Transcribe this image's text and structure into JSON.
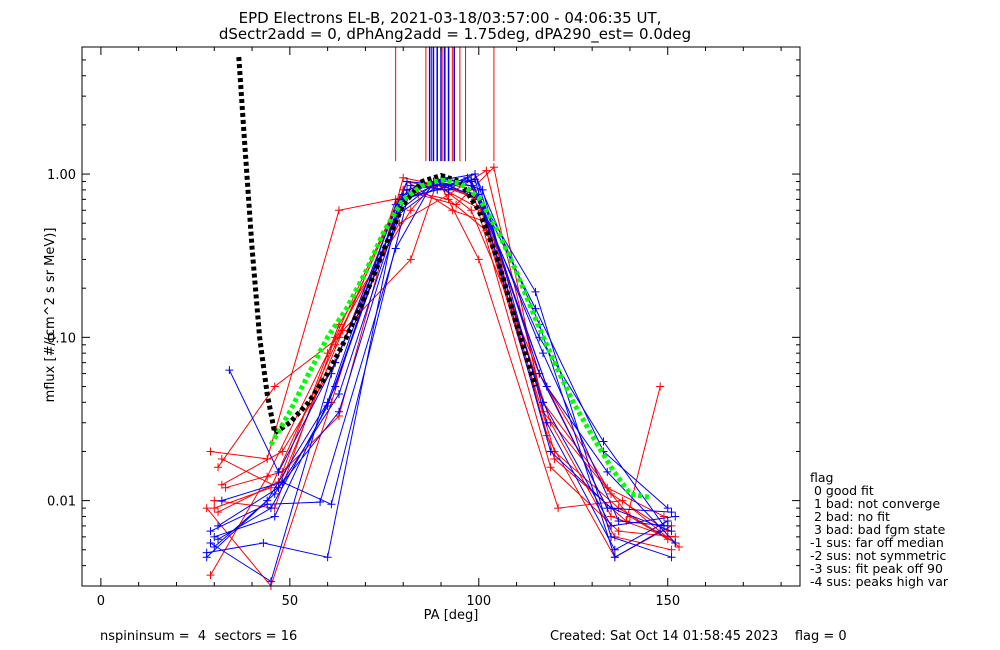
{
  "header": {
    "title_line1": "EPD Electrons EL-B, 2021-03-18/03:57:00 - 04:06:35 UT,",
    "title_line2": "dSectr2add = 0, dPhAng2add = 1.75deg, dPA290_est=   0.0deg"
  },
  "footer": {
    "left": "nspininsum =  4  sectors = 16",
    "right": "Created: Sat Oct 14 01:58:45 2023    flag = 0"
  },
  "legend": {
    "title": "flag",
    "items": [
      " 0 good fit",
      " 1 bad: not converge",
      " 2 bad: no fit",
      " 3 bad: bad fgm state",
      "-1 sus: far off median",
      "-2 sus: not symmetric",
      "-3 sus: fit peak off 90",
      "-4 sus: peaks high var"
    ]
  },
  "chart_data": {
    "type": "line",
    "xlabel": "PA [deg]",
    "ylabel": "mflux [#/(cm^2 s sr MeV)]",
    "xlim": [
      -5,
      185
    ],
    "ylim": [
      0.003,
      6
    ],
    "yscale": "log",
    "xticks": [
      0,
      50,
      100,
      150
    ],
    "xtick_labels": [
      "0",
      "50",
      "100",
      "150"
    ],
    "yticks": [
      0.01,
      0.1,
      1.0
    ],
    "ytick_labels": [
      "0.01",
      "0.10",
      "1.00"
    ],
    "colors": {
      "red": "#ff0000",
      "blue": "#0000ff",
      "black": "#000000",
      "green": "#00ff00"
    },
    "vertical_markers": {
      "y_bottom": 1.2,
      "red_x": [
        78,
        86,
        87.5,
        90.5,
        93,
        95,
        96.5,
        104
      ],
      "blue_x": [
        87,
        88,
        89,
        90,
        91,
        92,
        93.5
      ]
    },
    "series": [
      {
        "color": "red",
        "x": [
          30,
          45,
          62,
          80,
          90,
          100,
          118,
          135,
          150
        ],
        "y": [
          0.009,
          0.012,
          0.09,
          0.8,
          0.85,
          0.7,
          0.05,
          0.008,
          0.006
        ]
      },
      {
        "color": "red",
        "x": [
          31,
          46,
          63,
          81,
          91,
          101,
          119,
          136,
          151
        ],
        "y": [
          0.016,
          0.05,
          0.1,
          0.9,
          0.8,
          0.6,
          0.03,
          0.006,
          0.005
        ]
      },
      {
        "color": "red",
        "x": [
          32,
          47,
          64,
          82,
          89,
          99,
          120,
          137,
          152
        ],
        "y": [
          0.018,
          0.012,
          0.11,
          0.3,
          0.9,
          0.8,
          0.02,
          0.009,
          0.0055
        ]
      },
      {
        "color": "red",
        "x": [
          29,
          44,
          60,
          79,
          92,
          102,
          117,
          134,
          149
        ],
        "y": [
          0.0035,
          0.014,
          0.08,
          0.5,
          0.75,
          1.05,
          0.04,
          0.012,
          0.008
        ]
      },
      {
        "color": "red",
        "x": [
          33,
          48,
          63,
          80,
          90,
          100,
          121,
          138,
          153
        ],
        "y": [
          0.012,
          0.015,
          0.033,
          0.95,
          0.85,
          0.3,
          0.009,
          0.01,
          0.0052
        ]
      },
      {
        "color": "red",
        "x": [
          28,
          45,
          61,
          78,
          88,
          98,
          116,
          135,
          150
        ],
        "y": [
          0.009,
          0.003,
          0.04,
          0.7,
          0.9,
          0.6,
          0.06,
          0.011,
          0.0065
        ]
      },
      {
        "color": "red",
        "x": [
          30,
          46,
          62,
          81,
          93,
          103,
          118,
          136,
          151
        ],
        "y": [
          0.01,
          0.009,
          0.1,
          0.9,
          0.6,
          0.5,
          0.025,
          0.0045,
          0.007
        ]
      },
      {
        "color": "red",
        "x": [
          31,
          47,
          63,
          82,
          89,
          99,
          119,
          137,
          152
        ],
        "y": [
          0.0085,
          0.013,
          0.12,
          0.6,
          0.92,
          0.7,
          0.016,
          0.0065,
          0.006
        ]
      },
      {
        "color": "red",
        "x": [
          29,
          44,
          63,
          84,
          94,
          104,
          117,
          140,
          150
        ],
        "y": [
          0.02,
          0.018,
          0.6,
          0.75,
          0.65,
          1.1,
          0.035,
          0.008,
          0.0058
        ]
      },
      {
        "color": "red",
        "x": [
          32,
          48,
          62,
          80,
          92,
          102,
          120,
          139,
          148
        ],
        "y": [
          0.0125,
          0.02,
          0.07,
          0.8,
          0.7,
          0.45,
          0.018,
          0.0075,
          0.05
        ]
      },
      {
        "color": "blue",
        "x": [
          28,
          44,
          60,
          78,
          88,
          98,
          115,
          133,
          150
        ],
        "y": [
          0.0045,
          0.01,
          0.04,
          0.65,
          0.85,
          0.9,
          0.15,
          0.02,
          0.009
        ]
      },
      {
        "color": "blue",
        "x": [
          29,
          45,
          61,
          79,
          89,
          99,
          116,
          134,
          151
        ],
        "y": [
          0.0055,
          0.0032,
          0.06,
          0.7,
          0.8,
          1.0,
          0.06,
          0.009,
          0.0085
        ]
      },
      {
        "color": "blue",
        "x": [
          30,
          46,
          62,
          80,
          90,
          100,
          117,
          135,
          152
        ],
        "y": [
          0.006,
          0.008,
          0.05,
          0.75,
          0.9,
          0.7,
          0.04,
          0.007,
          0.008
        ]
      },
      {
        "color": "blue",
        "x": [
          31,
          47,
          63,
          81,
          91,
          101,
          118,
          136,
          150
        ],
        "y": [
          0.007,
          0.012,
          0.035,
          0.8,
          0.95,
          0.8,
          0.03,
          0.005,
          0.0075
        ]
      },
      {
        "color": "blue",
        "x": [
          28,
          43,
          60,
          78,
          90,
          98,
          116,
          133,
          149
        ],
        "y": [
          0.0048,
          0.0055,
          0.0045,
          0.55,
          0.88,
          0.85,
          0.1,
          0.023,
          0.007
        ]
      },
      {
        "color": "blue",
        "x": [
          32,
          48,
          61,
          82,
          92,
          97,
          115,
          135,
          151
        ],
        "y": [
          0.01,
          0.013,
          0.0095,
          0.85,
          0.8,
          0.95,
          0.19,
          0.006,
          0.0045
        ]
      },
      {
        "color": "blue",
        "x": [
          29,
          44,
          58,
          78,
          88,
          99,
          116,
          136,
          148
        ],
        "y": [
          0.0065,
          0.0095,
          0.0098,
          0.35,
          0.9,
          1.0,
          0.12,
          0.0045,
          0.0065
        ]
      },
      {
        "color": "blue",
        "x": [
          30,
          46,
          63,
          80,
          91,
          100,
          118,
          134,
          152
        ],
        "y": [
          0.0052,
          0.011,
          0.045,
          0.7,
          0.83,
          0.75,
          0.05,
          0.015,
          0.0055
        ]
      },
      {
        "color": "blue",
        "x": [
          34,
          47,
          62,
          79,
          89,
          98,
          117,
          137,
          150
        ],
        "y": [
          0.063,
          0.015,
          0.07,
          0.6,
          0.9,
          0.92,
          0.08,
          0.0075,
          0.007
        ]
      },
      {
        "color": "blue",
        "x": [
          31,
          45,
          60,
          81,
          92,
          99,
          119,
          135,
          151
        ],
        "y": [
          0.0058,
          0.009,
          0.038,
          0.9,
          0.85,
          0.93,
          0.02,
          0.009,
          0.0065
        ]
      }
    ],
    "fits": [
      {
        "name": "",
        "color": "black",
        "style": "dotted",
        "x": [
          36.5,
          38,
          40,
          42,
          44,
          46,
          50,
          55,
          60,
          65,
          70,
          75,
          80,
          85,
          90,
          95,
          100,
          105,
          110,
          115
        ],
        "y": [
          5.2,
          1.6,
          0.35,
          0.1,
          0.045,
          0.026,
          0.03,
          0.04,
          0.06,
          0.1,
          0.18,
          0.35,
          0.65,
          0.9,
          0.98,
          0.9,
          0.6,
          0.3,
          0.12,
          0.05
        ]
      },
      {
        "name": "",
        "color": "green",
        "style": "dotted",
        "x": [
          45,
          50,
          55,
          60,
          65,
          70,
          75,
          80,
          85,
          90,
          95,
          100,
          105,
          110,
          115,
          120,
          125,
          130,
          135,
          140,
          145
        ],
        "y": [
          0.022,
          0.035,
          0.06,
          0.1,
          0.15,
          0.25,
          0.45,
          0.7,
          0.85,
          0.92,
          0.88,
          0.72,
          0.45,
          0.25,
          0.13,
          0.07,
          0.04,
          0.025,
          0.016,
          0.011,
          0.0105
        ]
      }
    ]
  }
}
